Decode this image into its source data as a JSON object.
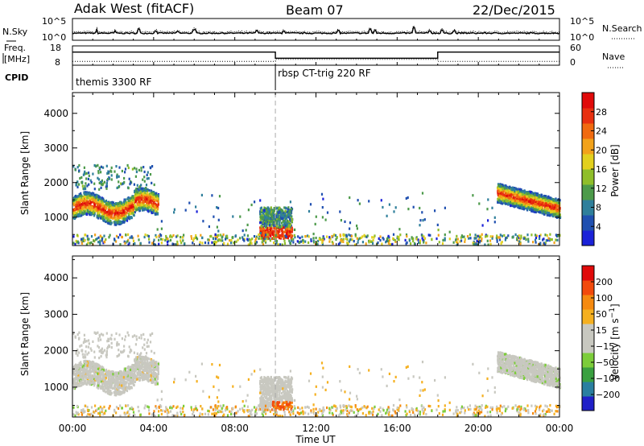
{
  "header": {
    "station": "Adak West (fitACF)",
    "beam": "Beam 07",
    "date": "22/Dec/2015"
  },
  "panels": {
    "nsky": {
      "left_label": "N.Sky",
      "right_label": "N.Search",
      "left_ticks": [
        "10^5",
        "10^0"
      ],
      "right_ticks": [
        "10^5",
        "10^0"
      ]
    },
    "freq": {
      "left_label_1": "Freq.",
      "left_label_2": "[MHz]",
      "right_label": "Nave",
      "left_ticks": [
        "18",
        "8"
      ],
      "right_ticks": [
        "60",
        "0"
      ]
    },
    "cpid": {
      "label": "CPID",
      "modes": [
        "themis 3300 RF",
        "rbsp CT-trig 220 RF"
      ]
    }
  },
  "xaxis": {
    "label": "Time UT",
    "ticks": [
      "00:00",
      "04:00",
      "08:00",
      "12:00",
      "16:00",
      "20:00",
      "00:00"
    ]
  },
  "colors": {
    "power": [
      "#1b22d8",
      "#2050b0",
      "#2f7f9b",
      "#4c9a4a",
      "#8fbe2a",
      "#e2d01e",
      "#f2a21a",
      "#f06a10",
      "#e83010",
      "#e00a0a"
    ],
    "velocity": [
      "#e00a0a",
      "#f24a0c",
      "#f58a10",
      "#f5b020",
      "#c8c8c0",
      "#c8c8c0",
      "#7ccd3a",
      "#3aa040",
      "#2a7fa0",
      "#2020c8"
    ],
    "gray": "#c8c8c0",
    "marker_line": "#aaaaaa"
  },
  "chart_data": [
    {
      "type": "heatmap",
      "title": "",
      "ylabel": "Slant Range [km]",
      "xlabel": "",
      "y_ticks": [
        "1000",
        "2000",
        "3000",
        "4000"
      ],
      "ylim": [
        180,
        4600
      ],
      "xlim_hours": [
        0,
        24
      ],
      "colorbar": {
        "label": "Power [dB]",
        "ticks": [
          "4",
          "8",
          "12",
          "16",
          "20",
          "24",
          "28"
        ],
        "range": [
          0,
          32
        ]
      },
      "scatter_regions": [
        {
          "t": [
            0.0,
            4.2
          ],
          "r": [
            950,
            1700
          ],
          "value": "strong"
        },
        {
          "t": [
            9.2,
            10.8
          ],
          "r": [
            500,
            1300
          ],
          "value": "medium"
        },
        {
          "t": [
            20.9,
            24.0
          ],
          "r": [
            1050,
            1900
          ],
          "value": "strong"
        },
        {
          "t": [
            0.0,
            24.0
          ],
          "r": [
            200,
            500
          ],
          "value": "weak"
        }
      ]
    },
    {
      "type": "heatmap",
      "title": "",
      "ylabel": "Slant Range [km]",
      "xlabel": "Time UT",
      "y_ticks": [
        "1000",
        "2000",
        "3000",
        "4000"
      ],
      "ylim": [
        180,
        4600
      ],
      "xlim_hours": [
        0,
        24
      ],
      "colorbar": {
        "label": "Velocity [m s^-1]",
        "ticks": [
          "200",
          "100",
          "50",
          "15",
          "−15",
          "−50",
          "−100",
          "−200"
        ],
        "range": [
          -250,
          250
        ]
      }
    }
  ],
  "cpid_switch_hour": 10.0,
  "ns_spikes": [
    [
      1.2,
      4
    ],
    [
      2.1,
      3
    ],
    [
      3.3,
      5
    ],
    [
      4.1,
      3
    ],
    [
      5.2,
      2
    ],
    [
      6.0,
      4
    ],
    [
      9.1,
      3
    ],
    [
      10.4,
      3
    ],
    [
      13.1,
      3
    ],
    [
      14.7,
      5
    ],
    [
      14.9,
      3
    ],
    [
      16.8,
      7
    ],
    [
      17.6,
      3
    ],
    [
      18.2,
      4
    ],
    [
      18.8,
      3
    ]
  ],
  "freq_segments": [
    [
      0,
      10.0,
      14.8
    ],
    [
      10.0,
      18.0,
      11.6
    ],
    [
      18.0,
      24.0,
      14.8
    ]
  ],
  "nave_segments": [
    [
      0,
      10.0,
      12
    ],
    [
      10.0,
      18.0,
      18
    ],
    [
      18.0,
      24.0,
      12
    ]
  ]
}
